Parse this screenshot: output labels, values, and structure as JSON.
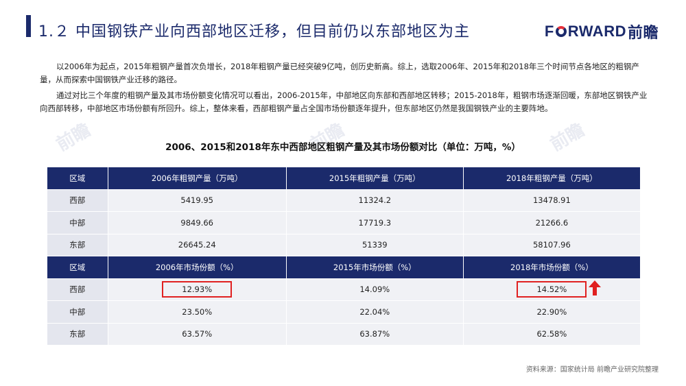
{
  "header": {
    "title": "1.２ 中国钢铁产业向西部地区迁移，但目前仍以东部地区为主",
    "logo_text_1": "F",
    "logo_text_2": "RWARD",
    "logo_cn": "前瞻"
  },
  "body": {
    "paragraph_1": "以2006年为起点，2015年粗钢产量首次负增长，2018年粗钢产量已经突破9亿吨，创历史新高。综上，选取2006年、2015年和2018年三个时间节点各地区的粗钢产量，从而探索中国钢铁产业迁移的路径。",
    "paragraph_2": "通过对比三个年度的粗钢产量及其市场份额变化情况可以看出，2006-2015年，中部地区向东部和西部地区转移；2015-2018年，粗钢市场逐渐回暖，东部地区钢铁产业向西部转移，中部地区市场份额有所回升。综上，整体来看，西部粗钢产量占全国市场份额逐年提升，但东部地区仍然是我国钢铁产业的主要阵地。"
  },
  "table": {
    "title": "2006、2015和2018年东中西部地区粗钢产量及其市场份额对比（单位：万吨，%）",
    "output_header": [
      "区域",
      "2006年粗钢产量（万吨）",
      "2015年粗钢产量（万吨）",
      "2018年粗钢产量（万吨）"
    ],
    "output_rows": [
      [
        "西部",
        "5419.95",
        "11324.2",
        "13478.91"
      ],
      [
        "中部",
        "9849.66",
        "17719.3",
        "21266.6"
      ],
      [
        "东部",
        "26645.24",
        "51339",
        "58107.96"
      ]
    ],
    "share_header": [
      "区域",
      "2006年市场份额（%）",
      "2015年市场份额（%）",
      "2018年市场份额（%）"
    ],
    "share_rows": [
      [
        "西部",
        "12.93%",
        "14.09%",
        "14.52%"
      ],
      [
        "中部",
        "23.50%",
        "22.04%",
        "22.90%"
      ],
      [
        "东部",
        "63.57%",
        "63.87%",
        "62.58%"
      ]
    ]
  },
  "footer": {
    "source": "资料来源：国家统计局 前瞻产业研究院整理"
  },
  "colors": {
    "brand": "#1b2a6b",
    "highlight": "#e02020",
    "row_bg": "#f0f1f5"
  }
}
